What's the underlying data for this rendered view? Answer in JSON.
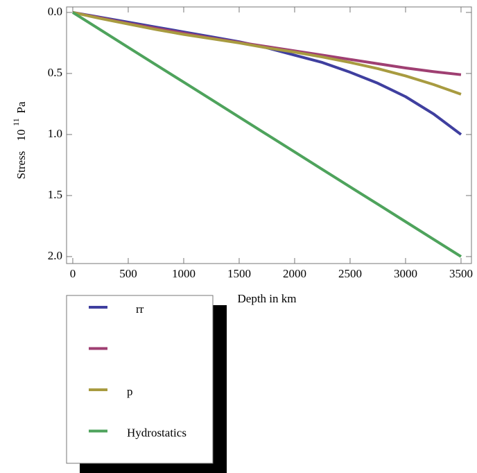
{
  "chart_data": {
    "type": "line",
    "x_label": "Depth in km",
    "y_label": {
      "text": "Stress",
      "base": "10",
      "exponent": "11",
      "unit": "Pa"
    },
    "x": [
      0,
      250,
      500,
      750,
      1000,
      1250,
      1500,
      1750,
      2000,
      2250,
      2500,
      2750,
      3000,
      3250,
      3500
    ],
    "series": [
      {
        "name": "rr",
        "color": "#3f3f9f",
        "values": [
          0,
          0.04,
          0.08,
          0.12,
          0.16,
          0.2,
          0.24,
          0.29,
          0.35,
          0.41,
          0.49,
          0.58,
          0.69,
          0.83,
          1.0
        ]
      },
      {
        "name": null,
        "color": "#9f3f72",
        "values": [
          0,
          0.045,
          0.09,
          0.13,
          0.17,
          0.21,
          0.245,
          0.28,
          0.315,
          0.35,
          0.385,
          0.42,
          0.455,
          0.485,
          0.51
        ]
      },
      {
        "name": "p",
        "color": "#a89b40",
        "values": [
          0,
          0.05,
          0.095,
          0.14,
          0.18,
          0.215,
          0.25,
          0.29,
          0.325,
          0.365,
          0.41,
          0.46,
          0.52,
          0.59,
          0.67
        ]
      },
      {
        "name": "Hydrostatics",
        "color": "#4ea35c",
        "values": [
          0,
          0.143,
          0.286,
          0.429,
          0.571,
          0.714,
          0.857,
          1.0,
          1.143,
          1.286,
          1.429,
          1.571,
          1.714,
          1.857,
          2.0
        ]
      }
    ],
    "xlim": [
      -56,
      3594
    ],
    "ylim": [
      -0.045,
      2.057
    ],
    "y_reversed": true,
    "xticks": [
      0,
      500,
      1000,
      1500,
      2000,
      2500,
      3000,
      3500
    ],
    "yticks": [
      {
        "value": 0,
        "label": "0.0"
      },
      0.5,
      {
        "value": 1,
        "label": "1.0"
      },
      1.5,
      {
        "value": 2,
        "label": "2.0"
      }
    ],
    "grid": false
  }
}
